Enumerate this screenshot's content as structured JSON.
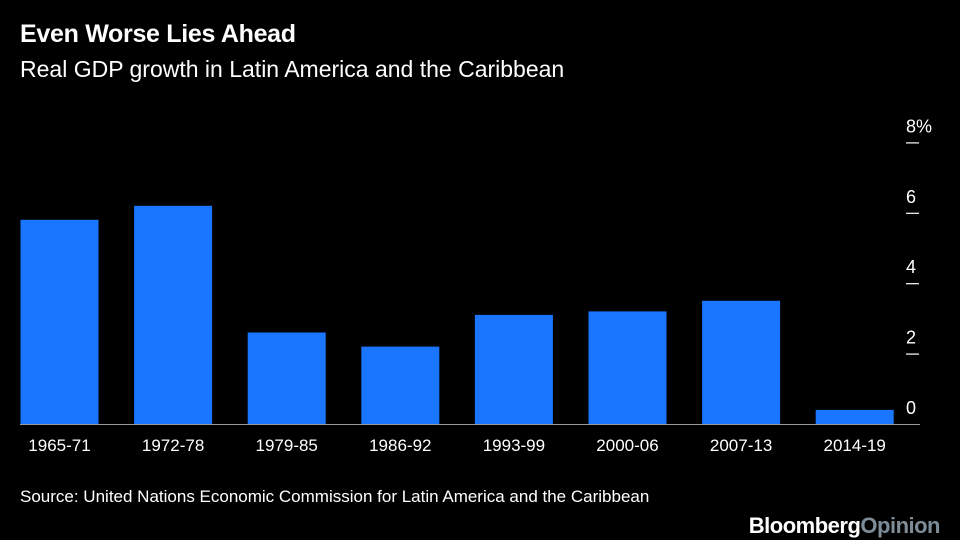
{
  "header": {
    "title": "Even Worse Lies Ahead",
    "subtitle": "Real GDP growth in Latin America and the Caribbean"
  },
  "chart_data": {
    "type": "bar",
    "title": "Even Worse Lies Ahead",
    "subtitle": "Real GDP growth in Latin America and the Caribbean",
    "categories": [
      "1965-71",
      "1972-78",
      "1979-85",
      "1986-92",
      "1993-99",
      "2000-06",
      "2007-13",
      "2014-19"
    ],
    "values": [
      5.8,
      6.2,
      2.6,
      2.2,
      3.1,
      3.2,
      3.5,
      0.4
    ],
    "unit": "%",
    "ylim": [
      0,
      8
    ],
    "yticks": [
      0,
      2,
      4,
      6,
      8
    ],
    "ytick_labels": [
      "0",
      "2",
      "4",
      "6",
      "8%"
    ],
    "xlabel": "",
    "ylabel": "",
    "y_axis_position": "right",
    "grid": false,
    "bar_color": "#1a75ff"
  },
  "footer": {
    "source": "Source: United Nations Economic Commission for Latin America and the Caribbean",
    "brand_name": "Bloomberg",
    "brand_opinion": "Opinion"
  }
}
